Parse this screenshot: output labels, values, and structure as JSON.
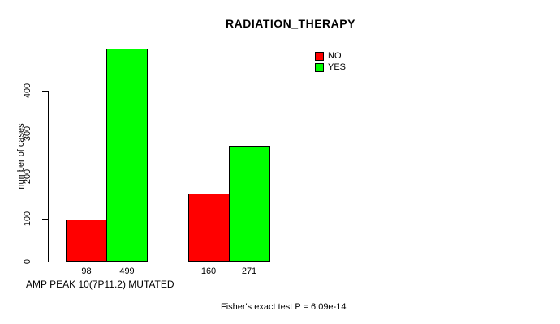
{
  "chart_data": {
    "type": "bar",
    "title": "RADIATION_THERAPY",
    "ylabel": "number of cases",
    "xlabel": "AMP PEAK 10(7P11.2) MUTATED",
    "annotation": "Fisher's exact test P = 6.09e-14",
    "yticks": [
      0,
      100,
      200,
      300,
      400
    ],
    "ylim": [
      0,
      499
    ],
    "grid": false,
    "legend_position": "top-right",
    "show_bar_value_labels": true,
    "series": [
      {
        "name": "NO",
        "color": "#ff0000",
        "values": [
          98,
          160
        ]
      },
      {
        "name": "YES",
        "color": "#00ff00",
        "values": [
          499,
          271
        ]
      }
    ]
  }
}
